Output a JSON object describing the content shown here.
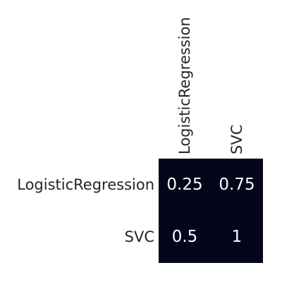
{
  "chart_data": {
    "type": "heatmap",
    "row_labels": [
      "LogisticRegression",
      "SVC"
    ],
    "col_labels": [
      "LogisticRegression",
      "SVC"
    ],
    "values": [
      [
        0.25,
        0.75
      ],
      [
        0.5,
        1
      ]
    ],
    "cell_labels": [
      [
        "0.25",
        "0.75"
      ],
      [
        "0.5",
        "1"
      ]
    ],
    "x_tick_position": "top",
    "x_tick_rotation": "vertical",
    "colorbar": false,
    "cell_color": "#03051a",
    "text_color": "#ffffff",
    "label_color": "#262626"
  }
}
